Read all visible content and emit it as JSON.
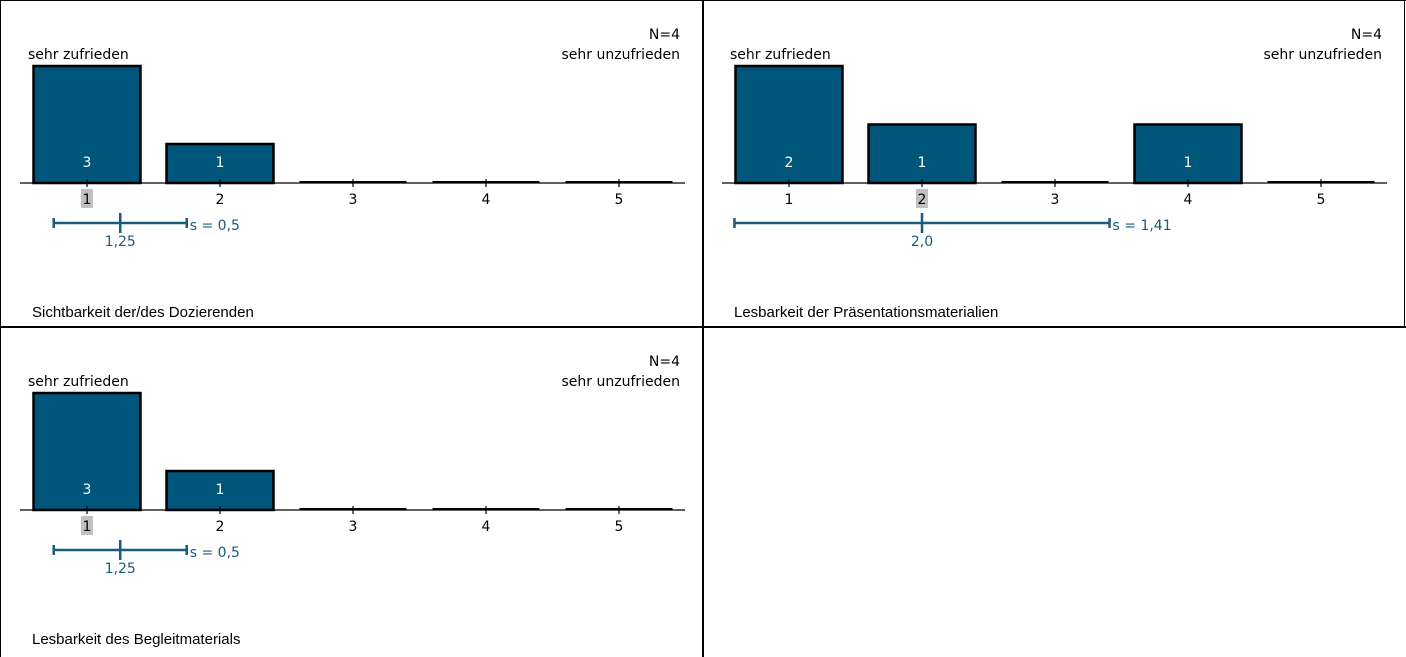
{
  "chart_data": [
    {
      "type": "bar",
      "title": "Sichtbarkeit der/des Dozierenden",
      "n_label": "N=4",
      "left_anchor": "sehr zufrieden",
      "right_anchor": "sehr unzufrieden",
      "categories": [
        "1",
        "2",
        "3",
        "4",
        "5"
      ],
      "values": [
        3,
        1,
        0,
        0,
        0
      ],
      "median_category": "1",
      "mean": 1.25,
      "mean_label": "1,25",
      "sd": 0.5,
      "sd_label": "s = 0,5",
      "ylim": [
        0,
        3
      ]
    },
    {
      "type": "bar",
      "title": "Lesbarkeit der Präsentationsmaterialien",
      "n_label": "N=4",
      "left_anchor": "sehr zufrieden",
      "right_anchor": "sehr unzufrieden",
      "categories": [
        "1",
        "2",
        "3",
        "4",
        "5"
      ],
      "values": [
        2,
        1,
        0,
        1,
        0
      ],
      "median_category": "2",
      "mean": 2.0,
      "mean_label": "2,0",
      "sd": 1.41,
      "sd_label": "s = 1,41",
      "ylim": [
        0,
        2
      ]
    },
    {
      "type": "bar",
      "title": "Lesbarkeit des Begleitmaterials",
      "n_label": "N=4",
      "left_anchor": "sehr zufrieden",
      "right_anchor": "sehr unzufrieden",
      "categories": [
        "1",
        "2",
        "3",
        "4",
        "5"
      ],
      "values": [
        3,
        1,
        0,
        0,
        0
      ],
      "median_category": "1",
      "mean": 1.25,
      "mean_label": "1,25",
      "sd": 0.5,
      "sd_label": "s = 0,5",
      "ylim": [
        0,
        3
      ]
    }
  ],
  "colors": {
    "bar_fill": "#00557a",
    "bar_stroke": "#000000",
    "mean_line": "#1a5c7a",
    "median_highlight": "#c0c0c0"
  }
}
